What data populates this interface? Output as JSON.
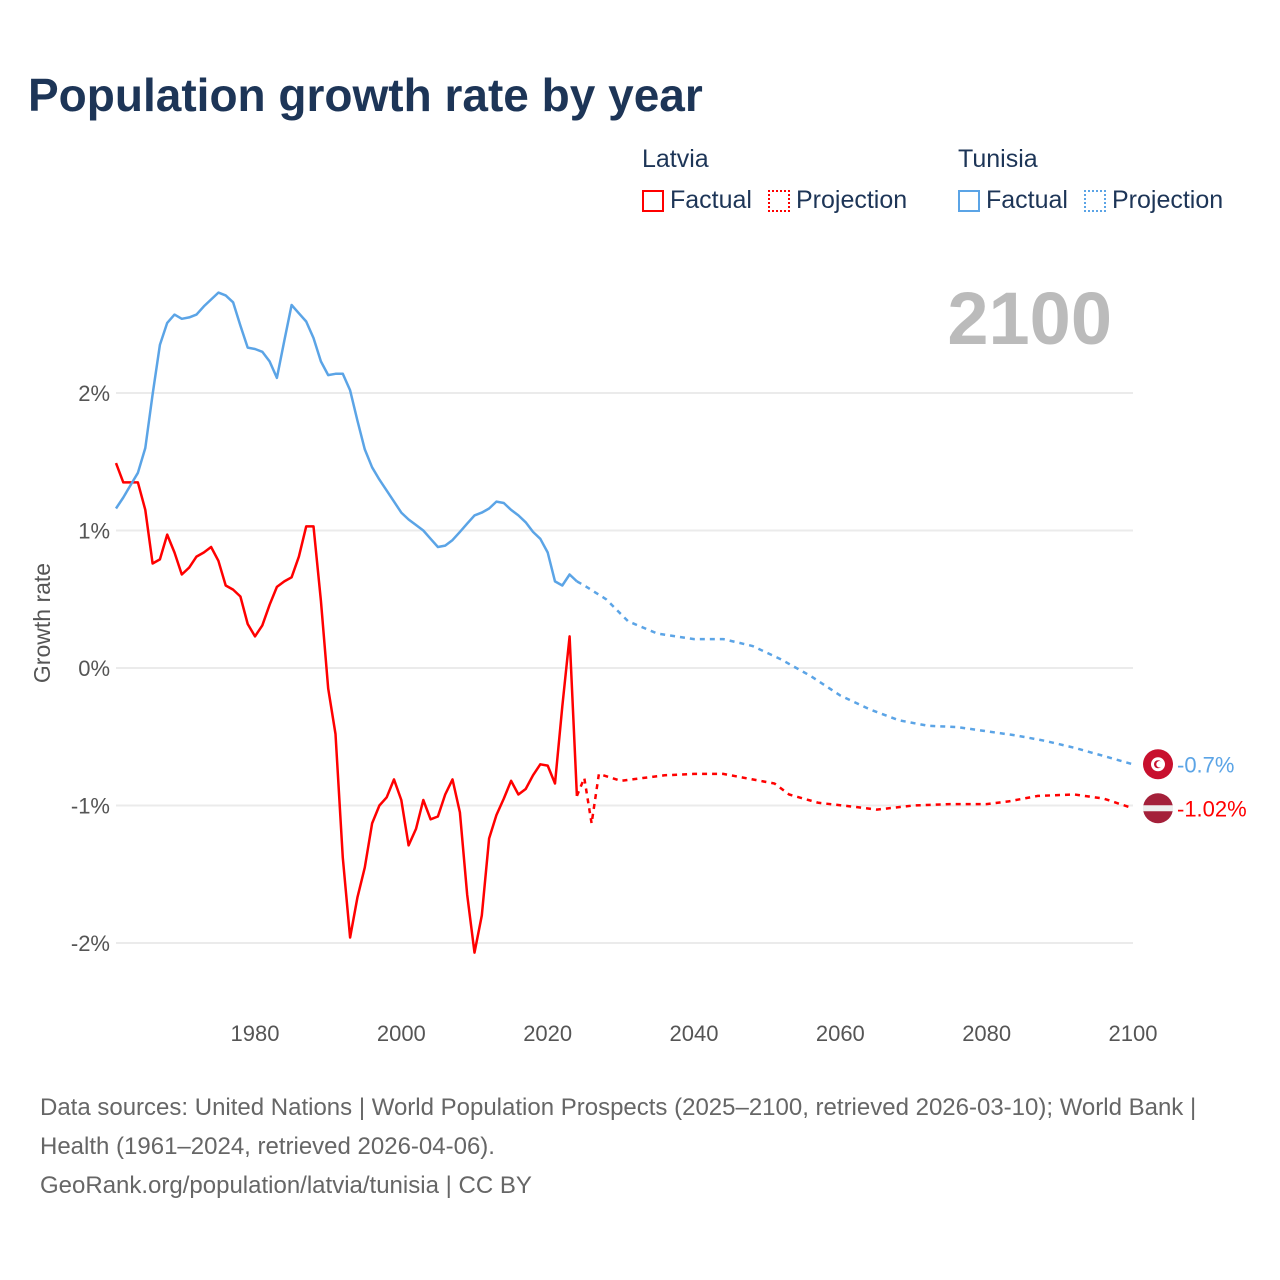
{
  "title": "Population growth rate by year",
  "legend": [
    {
      "group": "Latvia",
      "factual": "Factual",
      "projection": "Projection",
      "color": "#ff0000"
    },
    {
      "group": "Tunisia",
      "factual": "Factual",
      "projection": "Projection",
      "color": "#5ba4e6"
    }
  ],
  "current_year": "2100",
  "footer": {
    "sources": "Data sources: United Nations | World Population Prospects (2025–2100, retrieved 2026-03-10); World Bank | Health (1961–2024, retrieved 2026-04-06).",
    "link": "GeoRank.org/population/latvia/tunisia | CC BY"
  },
  "chart_data": {
    "type": "line",
    "title": "Population growth rate by year",
    "xlabel": "",
    "ylabel": "Growth rate",
    "xlim": [
      1961,
      2100
    ],
    "ylim": [
      -2.3,
      2.9
    ],
    "x_ticks": [
      1980,
      2000,
      2020,
      2040,
      2060,
      2080,
      2100
    ],
    "y_ticks": [
      {
        "v": 2,
        "label": "2%"
      },
      {
        "v": 1,
        "label": "1%"
      },
      {
        "v": 0,
        "label": "0%"
      },
      {
        "v": -1,
        "label": "-1%"
      },
      {
        "v": -2,
        "label": "-2%"
      }
    ],
    "grid": true,
    "series": [
      {
        "name": "Latvia",
        "color": "#ff0000",
        "end_label": "-1.02%",
        "factual_start": 1961,
        "factual": [
          1.49,
          1.35,
          1.35,
          1.35,
          1.15,
          0.76,
          0.79,
          0.97,
          0.84,
          0.68,
          0.73,
          0.81,
          0.84,
          0.88,
          0.78,
          0.6,
          0.57,
          0.52,
          0.32,
          0.23,
          0.31,
          0.46,
          0.59,
          0.63,
          0.66,
          0.81,
          1.03,
          1.03,
          0.49,
          -0.15,
          -0.48,
          -1.38,
          -1.96,
          -1.67,
          -1.45,
          -1.13,
          -1.0,
          -0.94,
          -0.81,
          -0.96,
          -1.29,
          -1.17,
          -0.96,
          -1.1,
          -1.08,
          -0.92,
          -0.81,
          -1.05,
          -1.65,
          -2.07,
          -1.8,
          -1.24,
          -1.07,
          -0.95,
          -0.82,
          -0.92,
          -0.88,
          -0.78,
          -0.7,
          -0.71,
          -0.84,
          -0.28,
          0.23,
          -0.93
        ],
        "projection": [
          [
            2024,
            -0.93
          ],
          [
            2025,
            -0.8
          ],
          [
            2026,
            -1.13
          ],
          [
            2027,
            -0.77
          ],
          [
            2030,
            -0.82
          ],
          [
            2033,
            -0.8
          ],
          [
            2036,
            -0.78
          ],
          [
            2040,
            -0.77
          ],
          [
            2044,
            -0.77
          ],
          [
            2048,
            -0.81
          ],
          [
            2051,
            -0.84
          ],
          [
            2053,
            -0.92
          ],
          [
            2057,
            -0.98
          ],
          [
            2062,
            -1.01
          ],
          [
            2065,
            -1.03
          ],
          [
            2070,
            -1.0
          ],
          [
            2075,
            -0.99
          ],
          [
            2080,
            -0.99
          ],
          [
            2083,
            -0.97
          ],
          [
            2087,
            -0.93
          ],
          [
            2092,
            -0.92
          ],
          [
            2096,
            -0.95
          ],
          [
            2100,
            -1.02
          ]
        ]
      },
      {
        "name": "Tunisia",
        "color": "#5ba4e6",
        "end_label": "-0.7%",
        "factual_start": 1961,
        "factual": [
          1.16,
          1.24,
          1.33,
          1.42,
          1.6,
          1.99,
          2.35,
          2.51,
          2.57,
          2.54,
          2.55,
          2.57,
          2.63,
          2.68,
          2.73,
          2.71,
          2.66,
          2.49,
          2.33,
          2.32,
          2.3,
          2.23,
          2.11,
          2.38,
          2.64,
          2.58,
          2.52,
          2.4,
          2.23,
          2.13,
          2.14,
          2.14,
          2.02,
          1.8,
          1.59,
          1.46,
          1.37,
          1.29,
          1.21,
          1.13,
          1.08,
          1.04,
          1.0,
          0.94,
          0.88,
          0.89,
          0.93,
          0.99,
          1.05,
          1.11,
          1.13,
          1.16,
          1.21,
          1.2,
          1.15,
          1.11,
          1.06,
          0.99,
          0.94,
          0.84,
          0.63,
          0.6,
          0.68,
          0.63
        ],
        "projection": [
          [
            2024,
            0.63
          ],
          [
            2025,
            0.6
          ],
          [
            2028,
            0.5
          ],
          [
            2031,
            0.34
          ],
          [
            2035,
            0.25
          ],
          [
            2040,
            0.21
          ],
          [
            2044,
            0.21
          ],
          [
            2048,
            0.16
          ],
          [
            2052,
            0.06
          ],
          [
            2056,
            -0.06
          ],
          [
            2060,
            -0.2
          ],
          [
            2064,
            -0.3
          ],
          [
            2068,
            -0.38
          ],
          [
            2072,
            -0.42
          ],
          [
            2076,
            -0.43
          ],
          [
            2080,
            -0.46
          ],
          [
            2084,
            -0.49
          ],
          [
            2088,
            -0.53
          ],
          [
            2092,
            -0.58
          ],
          [
            2096,
            -0.64
          ],
          [
            2100,
            -0.7
          ]
        ]
      }
    ]
  }
}
